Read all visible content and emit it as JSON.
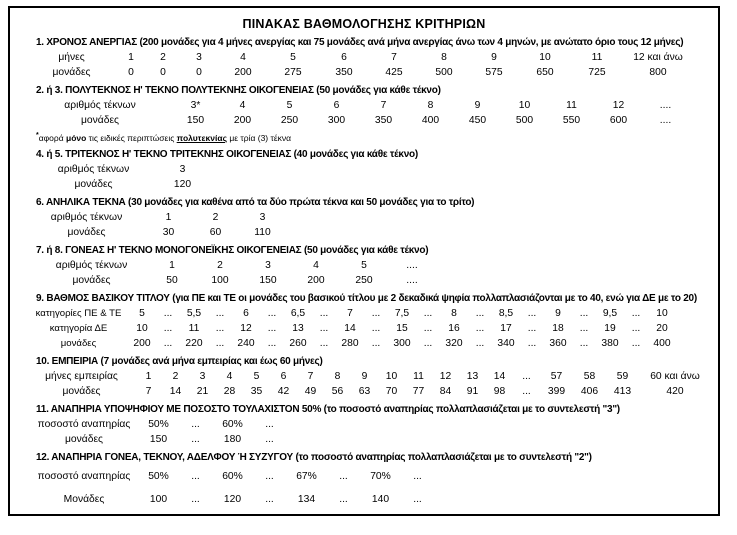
{
  "title": "ΠΙΝΑΚΑΣ ΒΑΘΜΟΛΟΓΗΣΗΣ ΚΡΙΤΗΡΙΩΝ",
  "sections": [
    {
      "id": "anergia",
      "heading": "1. ΧΡΟΝΟΣ ΑΝΕΡΓΙΑΣ (200 μονάδες για 4 μήνες ανεργίας και 75 μονάδες ανά μήνα ανεργίας άνω των 4 μηνών, με ανώτατο όριο τους 12 μήνες)",
      "rows": [
        {
          "label": "μήνες",
          "values": [
            "1",
            "2",
            "3",
            "4",
            "5",
            "6",
            "7",
            "8",
            "9",
            "10",
            "11",
            "12 και άνω"
          ]
        },
        {
          "label": "μονάδες",
          "values": [
            "0",
            "0",
            "0",
            "200",
            "275",
            "350",
            "425",
            "500",
            "575",
            "650",
            "725",
            "800"
          ]
        }
      ]
    },
    {
      "id": "polyteknos",
      "heading": "2. ή 3. ΠΟΛΥΤΕΚΝΟΣ Η' ΤΕΚΝΟ ΠΟΛΥΤΕΚΝΗΣ ΟΙΚΟΓΕΝΕΙΑΣ (50 μονάδες για κάθε τέκνο)",
      "rows": [
        {
          "label": "αριθμός τέκνων",
          "values": [
            "3*",
            "4",
            "5",
            "6",
            "7",
            "8",
            "9",
            "10",
            "11",
            "12",
            "...."
          ]
        },
        {
          "label": "μονάδες",
          "values": [
            "150",
            "200",
            "250",
            "300",
            "350",
            "400",
            "450",
            "500",
            "550",
            "600",
            "...."
          ]
        }
      ],
      "footnote_parts": [
        {
          "text": "*",
          "sup": true
        },
        {
          "text": "αφορά "
        },
        {
          "text": "μόνο",
          "bold": true
        },
        {
          "text": " τις ειδικές περιπτώσεις "
        },
        {
          "text": "πολυτεκνίας",
          "underline": true
        },
        {
          "text": " με τρία (3) τέκνα"
        }
      ]
    },
    {
      "id": "triteknos",
      "heading": "4. ή 5. ΤΡΙΤΕΚΝΟΣ Η' ΤΕΚΝΟ ΤΡΙΤΕΚΝΗΣ ΟΙΚΟΓΕΝΕΙΑΣ (40 μονάδες για κάθε τέκνο)",
      "rows": [
        {
          "label": "αριθμός τέκνων",
          "values": [
            "3"
          ]
        },
        {
          "label": "μονάδες",
          "values": [
            "120"
          ]
        }
      ]
    },
    {
      "id": "anilika-tekna",
      "heading": "6. ΑΝΗΛΙΚΑ ΤΕΚΝΑ (30 μονάδες για καθένα από τα δύο πρώτα τέκνα και 50 μονάδες για το τρίτο)",
      "rows": [
        {
          "label": "αριθμός τέκνων",
          "values": [
            "1",
            "2",
            "3"
          ]
        },
        {
          "label": "μονάδες",
          "values": [
            "30",
            "60",
            "110"
          ]
        }
      ]
    },
    {
      "id": "monogoneiki",
      "heading": "7. ή 8. ΓΟΝΕΑΣ Η' ΤΕΚΝΟ ΜΟΝΟΓΟΝΕΪΚΗΣ ΟΙΚΟΓΕΝΕΙΑΣ (50 μονάδες για κάθε τέκνο)",
      "rows": [
        {
          "label": "αριθμός τέκνων",
          "values": [
            "1",
            "2",
            "3",
            "4",
            "5",
            "...."
          ]
        },
        {
          "label": "μονάδες",
          "values": [
            "50",
            "100",
            "150",
            "200",
            "250",
            "...."
          ]
        }
      ]
    },
    {
      "id": "vathmos-titlou",
      "heading": "9. ΒΑΘΜΟΣ ΒΑΣΙΚΟΥ ΤΙΤΛΟΥ (για ΠΕ και ΤΕ οι μονάδες του βασικού τίτλου με 2 δεκαδικά ψηφία πολλαπλασιάζονται με το 40, ενώ για ΔΕ με το 20)",
      "rows": [
        {
          "label": "κατηγορίες  ΠΕ & ΤΕ",
          "values": [
            "5",
            "...",
            "5,5",
            "...",
            "6",
            "...",
            "6,5",
            "...",
            "7",
            "...",
            "7,5",
            "...",
            "8",
            "...",
            "8,5",
            "...",
            "9",
            "...",
            "9,5",
            "...",
            "10"
          ]
        },
        {
          "label": "κατηγορία ΔΕ",
          "values": [
            "10",
            "...",
            "11",
            "...",
            "12",
            "...",
            "13",
            "...",
            "14",
            "...",
            "15",
            "...",
            "16",
            "...",
            "17",
            "...",
            "18",
            "...",
            "19",
            "...",
            "20"
          ]
        },
        {
          "label": "μονάδες",
          "values": [
            "200",
            "...",
            "220",
            "...",
            "240",
            "...",
            "260",
            "...",
            "280",
            "...",
            "300",
            "...",
            "320",
            "...",
            "340",
            "...",
            "360",
            "...",
            "380",
            "...",
            "400"
          ]
        }
      ]
    },
    {
      "id": "empeiria",
      "heading": "10. ΕΜΠΕΙΡΙΑ (7 μονάδες ανά μήνα εμπειρίας και έως 60 μήνες)",
      "rows": [
        {
          "label": "μήνες εμπειρίας",
          "values": [
            "1",
            "2",
            "3",
            "4",
            "5",
            "6",
            "7",
            "8",
            "9",
            "10",
            "11",
            "12",
            "13",
            "14",
            "...",
            "57",
            "58",
            "59",
            "60 και άνω"
          ]
        },
        {
          "label": "μονάδες",
          "values": [
            "7",
            "14",
            "21",
            "28",
            "35",
            "42",
            "49",
            "56",
            "63",
            "70",
            "77",
            "84",
            "91",
            "98",
            "...",
            "399",
            "406",
            "413",
            "420"
          ]
        }
      ]
    },
    {
      "id": "anapiria-ypopsifiou",
      "heading": "11. ΑΝΑΠΗΡΙΑ ΥΠΟΨΗΦΙΟΥ ΜΕ ΠΟΣΟΣΤΟ ΤΟΥΛΑΧΙΣΤΟΝ 50% (το ποσοστό αναπηρίας πολλαπλασιάζεται με το συντελεστή \"3\")",
      "rows": [
        {
          "label": "ποσοστό αναπηρίας",
          "values": [
            "50%",
            "...",
            "60%",
            "..."
          ]
        },
        {
          "label": "μονάδες",
          "values": [
            "150",
            "...",
            "180",
            "..."
          ]
        }
      ]
    },
    {
      "id": "anapiria-gonea",
      "heading": "12. ΑΝΑΠΗΡΙΑ ΓΟΝΕΑ, ΤΕΚΝΟΥ, ΑΔΕΛΦΟΥ Ή ΣΥΖΥΓΟΥ (το ποσοστό αναπηρίας πολλαπλασιάζεται με το συντελεστή \"2\")",
      "rows": [
        {
          "label": "ποσοστό αναπηρίας",
          "values": [
            "50%",
            "...",
            "60%",
            "...",
            "67%",
            "...",
            "70%",
            "..."
          ]
        },
        {
          "label": "Μονάδες",
          "values": [
            "100",
            "...",
            "120",
            "...",
            "134",
            "...",
            "140",
            "..."
          ]
        }
      ]
    }
  ]
}
